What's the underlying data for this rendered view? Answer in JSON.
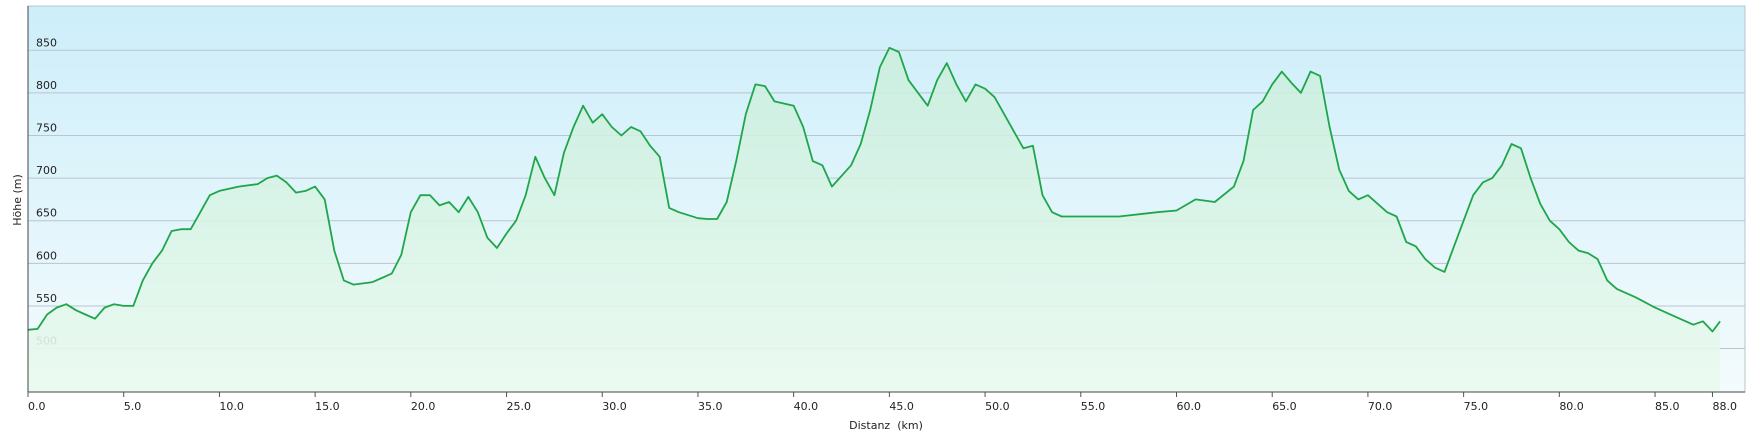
{
  "chart_data": {
    "type": "area",
    "x_label": "Distanz  (km)",
    "y_label": "Höhe (m)",
    "color": "#1fa64a",
    "grid": true,
    "xlim": [
      0,
      89.7
    ],
    "ylim": [
      449,
      902
    ],
    "xticks": [
      {
        "value": 0,
        "label": "0.0"
      },
      {
        "value": 5,
        "label": "5.0"
      },
      {
        "value": 10,
        "label": "10.0"
      },
      {
        "value": 15,
        "label": "15.0"
      },
      {
        "value": 20,
        "label": "20.0"
      },
      {
        "value": 25,
        "label": "25.0"
      },
      {
        "value": 30,
        "label": "30.0"
      },
      {
        "value": 35,
        "label": "35.0"
      },
      {
        "value": 40,
        "label": "40.0"
      },
      {
        "value": 45,
        "label": "45.0"
      },
      {
        "value": 50,
        "label": "50.0"
      },
      {
        "value": 55,
        "label": "55.0"
      },
      {
        "value": 60,
        "label": "60.0"
      },
      {
        "value": 65,
        "label": "65.0"
      },
      {
        "value": 70,
        "label": "70.0"
      },
      {
        "value": 75,
        "label": "75.0"
      },
      {
        "value": 80,
        "label": "80.0"
      },
      {
        "value": 85,
        "label": "85.0"
      },
      {
        "value": 88,
        "label": "88.0"
      }
    ],
    "yticks": [
      500,
      550,
      600,
      650,
      700,
      750,
      800,
      850
    ],
    "x": [
      0,
      0.5,
      1,
      1.5,
      2,
      2.5,
      3,
      3.5,
      4,
      4.5,
      5,
      5.5,
      6,
      6.5,
      7,
      7.5,
      8,
      8.5,
      9,
      9.5,
      10,
      11,
      12,
      12.5,
      13,
      13.5,
      14,
      14.5,
      15,
      15.5,
      16,
      16.5,
      17,
      18,
      19,
      19.5,
      20,
      20.5,
      21,
      21.5,
      22,
      22.5,
      23,
      23.5,
      24,
      24.5,
      25,
      25.5,
      26,
      26.5,
      27,
      27.5,
      28,
      28.5,
      29,
      29.5,
      30,
      30.5,
      31,
      31.5,
      32,
      32.5,
      33,
      33.5,
      34,
      35,
      35.5,
      36,
      36.5,
      37,
      37.5,
      38,
      38.5,
      39,
      40,
      40.5,
      41,
      41.5,
      42,
      43,
      43.5,
      44,
      44.5,
      45,
      45.5,
      46,
      46.5,
      47,
      47.5,
      48,
      48.5,
      49,
      49.5,
      50,
      50.5,
      51,
      51.5,
      52,
      52.5,
      53,
      53.5,
      54,
      55,
      57,
      59,
      60,
      61,
      62,
      63,
      63.5,
      64,
      64.5,
      65,
      65.5,
      66,
      66.5,
      67,
      67.5,
      68,
      68.5,
      69,
      69.5,
      70,
      70.5,
      71,
      71.5,
      72,
      72.5,
      73,
      73.5,
      74,
      74.5,
      75,
      75.5,
      76,
      76.5,
      77,
      77.5,
      78,
      78.5,
      79,
      79.5,
      80,
      80.5,
      81,
      81.5,
      82,
      82.5,
      83,
      84,
      85,
      86,
      87,
      87.5,
      88,
      88.4
    ],
    "values": [
      522,
      523,
      540,
      548,
      552,
      545,
      540,
      535,
      548,
      552,
      550,
      550,
      580,
      600,
      615,
      638,
      640,
      640,
      660,
      680,
      685,
      690,
      693,
      700,
      703,
      695,
      683,
      685,
      690,
      675,
      615,
      580,
      575,
      578,
      588,
      610,
      660,
      680,
      680,
      668,
      672,
      660,
      678,
      660,
      630,
      618,
      635,
      650,
      680,
      725,
      700,
      680,
      730,
      760,
      785,
      765,
      775,
      760,
      750,
      760,
      755,
      738,
      725,
      665,
      660,
      653,
      652,
      652,
      672,
      720,
      775,
      810,
      808,
      790,
      785,
      760,
      720,
      715,
      690,
      715,
      740,
      780,
      830,
      853,
      848,
      815,
      800,
      785,
      815,
      835,
      810,
      790,
      810,
      805,
      795,
      775,
      755,
      735,
      738,
      680,
      660,
      655,
      655,
      655,
      660,
      662,
      675,
      672,
      690,
      720,
      780,
      790,
      810,
      825,
      812,
      800,
      825,
      820,
      760,
      710,
      685,
      675,
      680,
      670,
      660,
      655,
      625,
      620,
      605,
      595,
      590,
      620,
      650,
      680,
      695,
      700,
      715,
      740,
      735,
      700,
      670,
      650,
      640,
      625,
      615,
      612,
      605,
      580,
      570,
      560,
      548,
      538,
      528,
      532,
      520,
      532
    ]
  }
}
